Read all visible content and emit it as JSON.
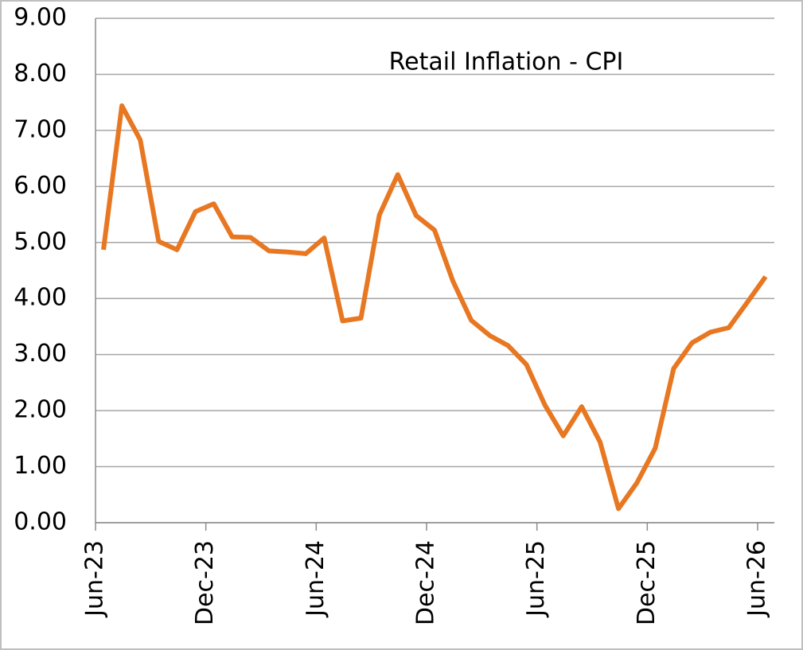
{
  "chart_data": {
    "type": "line",
    "title": "Retail Inflation - CPI",
    "categories": [
      "Jun-23",
      null,
      null,
      null,
      null,
      null,
      "Dec-23",
      null,
      null,
      null,
      null,
      null,
      "Jun-24",
      null,
      null,
      null,
      null,
      null,
      "Dec-24",
      null,
      null,
      null,
      null,
      null,
      "Jun-25",
      null,
      null,
      null,
      null,
      null,
      "Dec-25",
      null,
      null,
      null,
      null,
      null,
      "Jun-26"
    ],
    "series": [
      {
        "name": "CPI",
        "color": "#e87722",
        "values": [
          4.87,
          7.44,
          6.83,
          5.02,
          4.87,
          5.55,
          5.69,
          5.1,
          5.09,
          4.85,
          4.83,
          4.8,
          5.08,
          3.6,
          3.65,
          5.49,
          6.21,
          5.48,
          5.22,
          4.31,
          3.61,
          3.34,
          3.16,
          2.82,
          2.1,
          1.55,
          2.07,
          1.44,
          0.25,
          0.71,
          1.33,
          2.75,
          3.21,
          3.4,
          3.48,
          3.93,
          4.39
        ]
      }
    ],
    "ylim": [
      0,
      9
    ],
    "yticks": [
      {
        "value": 0,
        "label": "0.00"
      },
      {
        "value": 1,
        "label": "1.00"
      },
      {
        "value": 2,
        "label": "2.00"
      },
      {
        "value": 3,
        "label": "3.00"
      },
      {
        "value": 4,
        "label": "4.00"
      },
      {
        "value": 5,
        "label": "5.00"
      },
      {
        "value": 6,
        "label": "6.00"
      },
      {
        "value": 7,
        "label": "7.00"
      },
      {
        "value": 8,
        "label": "8.00"
      },
      {
        "value": 9,
        "label": "9.00"
      }
    ],
    "grid": true
  }
}
